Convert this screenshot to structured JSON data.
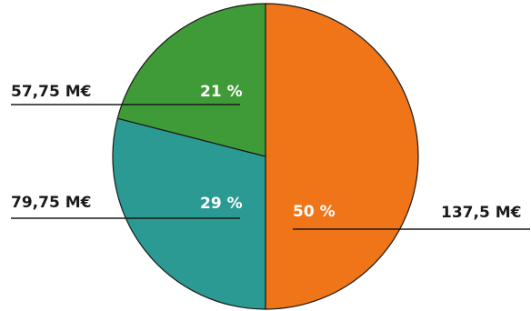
{
  "chart_data": {
    "type": "pie",
    "title": "",
    "start": "12 o'clock, clockwise",
    "slices": [
      {
        "percent_label": "50 %",
        "value_label": "137,5 M€",
        "value": 137.5,
        "percent": 50,
        "color": "#ef7518"
      },
      {
        "percent_label": "29 %",
        "value_label": "79,75 M€",
        "value": 79.75,
        "percent": 29,
        "color": "#2a9a93"
      },
      {
        "percent_label": "21 %",
        "value_label": "57,75 M€",
        "value": 57.75,
        "percent": 21,
        "color": "#3f9b37"
      }
    ],
    "leader_line_color": "#1a1a1a",
    "slice_border_color": "#1a1a1a"
  }
}
